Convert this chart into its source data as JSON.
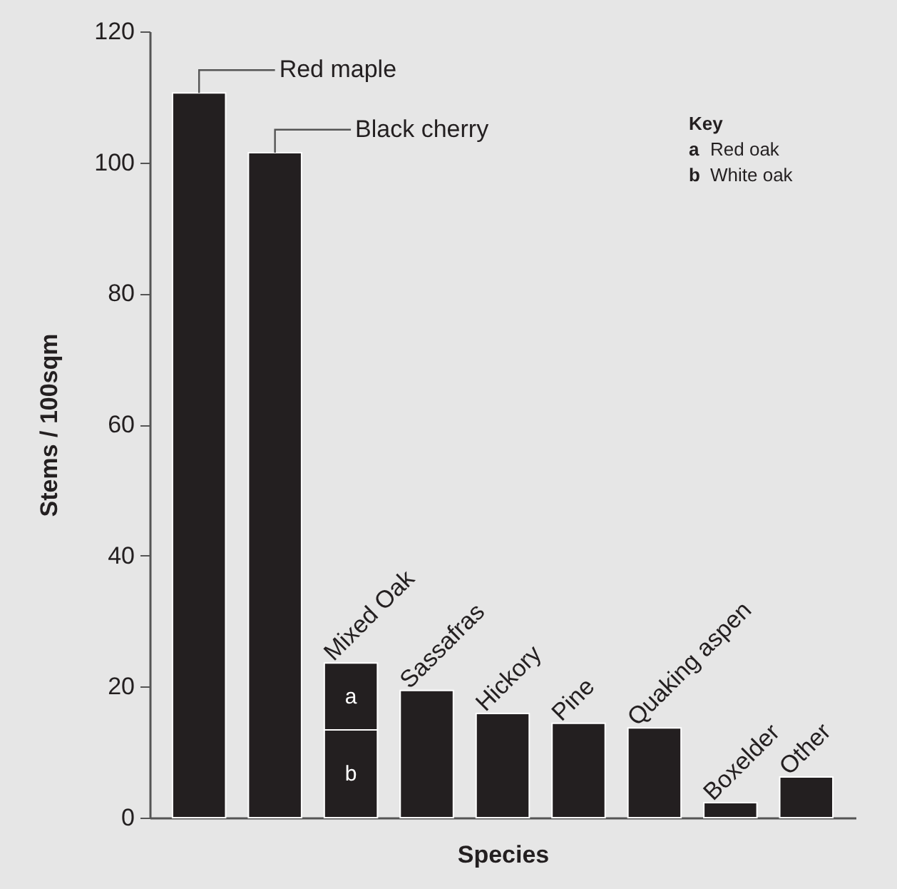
{
  "chart_data": {
    "type": "bar",
    "xlabel": "Species",
    "ylabel": "Stems / 100sqm",
    "legend_title": "Key",
    "legend": "top right",
    "stacked": true,
    "categories": [
      null,
      null,
      null,
      null,
      null,
      null,
      null,
      null,
      null
    ],
    "annotations": [
      "Red maple",
      "Black cherry",
      "Mixed Oak",
      "Sassafras",
      "Hickory",
      "Pine",
      "Quaking aspen",
      "Boxelder",
      "Other"
    ],
    "series": [
      {
        "color": "#231f20",
        "values": [
          110.6,
          101.5,
          null,
          19.4,
          15.9,
          14.4,
          13.7,
          2.3,
          6.2
        ]
      },
      {
        "name": "White oak",
        "color": "#231f20",
        "values": [
          null,
          null,
          13.4,
          null,
          null,
          null,
          null,
          null,
          null
        ],
        "value_labels": [
          null,
          null,
          "b",
          null,
          null,
          null,
          null,
          null,
          null
        ]
      },
      {
        "name": "Red oak",
        "color": "#231f20",
        "values": [
          null,
          null,
          10.2,
          null,
          null,
          null,
          null,
          null,
          null
        ],
        "value_labels": [
          null,
          null,
          "a",
          null,
          null,
          null,
          null,
          null,
          null
        ]
      }
    ],
    "ylim": [
      0,
      120
    ],
    "yticks": [
      0,
      20,
      40,
      60,
      80,
      100,
      120
    ]
  }
}
